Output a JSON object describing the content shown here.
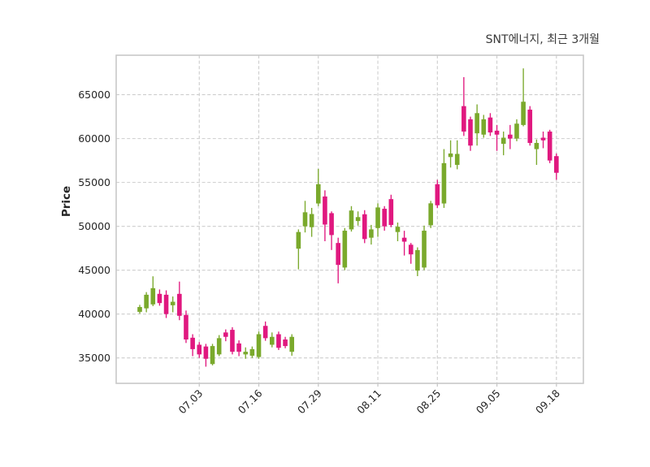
{
  "title": "SNT에너지, 최근 3개월",
  "y_axis": {
    "label": "Price"
  },
  "colors": {
    "up": "#7aa92c",
    "down": "#e0187f",
    "grid": "#cdcdcd",
    "spine": "#c8c8c8",
    "tick_text": "#262626",
    "title_text": "#3a3a3a",
    "background": "#ffffff"
  },
  "chart_data": {
    "type": "candlestick",
    "title": "SNT에너지, 최근 3개월",
    "xlabel": "",
    "ylabel": "Price",
    "y_range": [
      32100,
      69500
    ],
    "y_gridlines": [
      35000,
      40000,
      45000,
      50000,
      55000,
      60000,
      65000
    ],
    "grid": "dashed-both-axes",
    "legend": "none",
    "x_ticks": [
      {
        "index": 9,
        "label": "07.03"
      },
      {
        "index": 18,
        "label": "07.16"
      },
      {
        "index": 27,
        "label": "07.29"
      },
      {
        "index": 36,
        "label": "08.11"
      },
      {
        "index": 45,
        "label": "08.25"
      },
      {
        "index": 54,
        "label": "09.05"
      },
      {
        "index": 63,
        "label": "09.18"
      }
    ],
    "ohlc_order": [
      "open",
      "high",
      "low",
      "close"
    ],
    "candles": [
      [
        40250,
        41050,
        40050,
        40800
      ],
      [
        40650,
        42500,
        40200,
        42200
      ],
      [
        41100,
        44300,
        40900,
        42950
      ],
      [
        42300,
        42800,
        40950,
        41250
      ],
      [
        42200,
        42700,
        39550,
        40000
      ],
      [
        41000,
        42000,
        40200,
        41400
      ],
      [
        42300,
        43700,
        39300,
        39800
      ],
      [
        39900,
        40400,
        36700,
        37100
      ],
      [
        37300,
        37700,
        35200,
        36000
      ],
      [
        36500,
        36800,
        35000,
        35400
      ],
      [
        36300,
        36600,
        34000,
        34900
      ],
      [
        34300,
        36600,
        34150,
        36350
      ],
      [
        35400,
        37600,
        35200,
        37250
      ],
      [
        37900,
        38250,
        36900,
        37400
      ],
      [
        38200,
        38500,
        35400,
        35700
      ],
      [
        36650,
        37000,
        35200,
        35700
      ],
      [
        35400,
        36200,
        34900,
        35700
      ],
      [
        35250,
        36300,
        35000,
        36000
      ],
      [
        35100,
        38000,
        34900,
        37700
      ],
      [
        38650,
        39150,
        36950,
        37250
      ],
      [
        36500,
        37900,
        36200,
        37400
      ],
      [
        37700,
        38000,
        35900,
        36150
      ],
      [
        37100,
        37400,
        36100,
        36350
      ],
      [
        35700,
        37700,
        35250,
        37400
      ],
      [
        47450,
        49650,
        45100,
        49350
      ],
      [
        50000,
        52900,
        49300,
        51600
      ],
      [
        49900,
        52100,
        48800,
        51400
      ],
      [
        52600,
        56550,
        52300,
        54800
      ],
      [
        53400,
        54100,
        48300,
        50200
      ],
      [
        51500,
        51700,
        47300,
        49000
      ],
      [
        48100,
        48700,
        43500,
        45600
      ],
      [
        45300,
        49800,
        45000,
        49500
      ],
      [
        49650,
        52300,
        49400,
        51800
      ],
      [
        50600,
        51700,
        50080,
        51050
      ],
      [
        51370,
        51840,
        48080,
        48550
      ],
      [
        48700,
        50160,
        47920,
        49650
      ],
      [
        49800,
        52620,
        48800,
        52150
      ],
      [
        52000,
        52300,
        49500,
        50000
      ],
      [
        53100,
        53600,
        49900,
        50150
      ],
      [
        49350,
        50430,
        48300,
        49950
      ],
      [
        48700,
        49490,
        46670,
        48250
      ],
      [
        47900,
        48100,
        45730,
        46800
      ],
      [
        44950,
        47600,
        44320,
        47290
      ],
      [
        45300,
        50080,
        45000,
        49500
      ],
      [
        50120,
        52900,
        49800,
        52620
      ],
      [
        54800,
        55300,
        52100,
        52400
      ],
      [
        52600,
        58800,
        52100,
        57200
      ],
      [
        57900,
        59800,
        56700,
        58300
      ],
      [
        57000,
        59800,
        56500,
        58250
      ],
      [
        63700,
        67000,
        60300,
        60800
      ],
      [
        62200,
        62500,
        58600,
        59200
      ],
      [
        60600,
        63900,
        59200,
        62900
      ],
      [
        60450,
        62700,
        60100,
        62200
      ],
      [
        62400,
        62900,
        60300,
        60700
      ],
      [
        60900,
        61550,
        58600,
        60450
      ],
      [
        59400,
        60800,
        58100,
        60100
      ],
      [
        60450,
        61550,
        58800,
        60000
      ],
      [
        60000,
        62200,
        59700,
        61700
      ],
      [
        61550,
        68000,
        61400,
        64200
      ],
      [
        63300,
        63700,
        59200,
        59500
      ],
      [
        58800,
        59900,
        57000,
        59500
      ],
      [
        60100,
        60800,
        58900,
        59800
      ],
      [
        60800,
        61000,
        57200,
        57500
      ],
      [
        58000,
        58300,
        55300,
        56100
      ]
    ]
  }
}
